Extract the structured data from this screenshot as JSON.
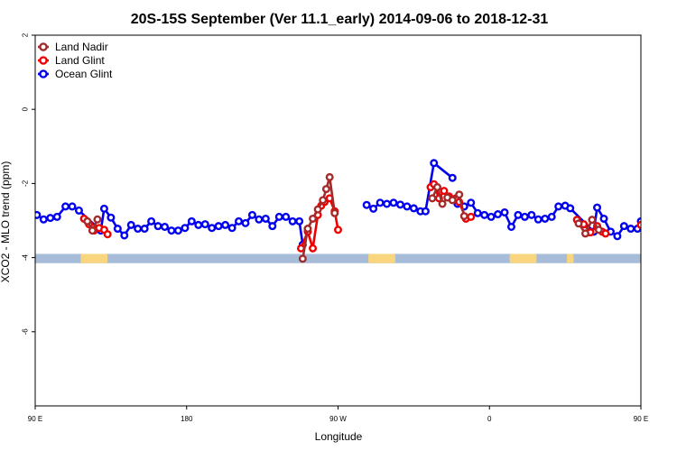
{
  "chart_data": {
    "type": "line",
    "title": "20S-15S September (Ver 11.1_early)   2014-09-06 to 2018-12-31",
    "xlabel": "Longitude",
    "ylabel": "XCO2 - MLO trend (ppm)",
    "xlim": [
      90,
      450
    ],
    "ylim": [
      -8,
      2
    ],
    "x_ticks": [
      {
        "value": 90,
        "label": "90 E"
      },
      {
        "value": 180,
        "label": "180"
      },
      {
        "value": 270,
        "label": "90 W"
      },
      {
        "value": 360,
        "label": "0"
      },
      {
        "value": 450,
        "label": "90 E"
      },
      {
        "value": 540,
        "label": "180"
      }
    ],
    "y_ticks": [
      {
        "value": 2,
        "label": "2"
      },
      {
        "value": 0,
        "label": "0"
      },
      {
        "value": -2,
        "label": "-2"
      },
      {
        "value": -4,
        "label": "-4"
      },
      {
        "value": -6,
        "label": "-6"
      }
    ],
    "land_band": {
      "y_top": -3.9,
      "y_bottom": -4.15,
      "ocean_color": "#a7bcd9",
      "land_color": "#f8d57e",
      "land_segments": [
        [
          117,
          133
        ],
        [
          288,
          304
        ],
        [
          372,
          388
        ],
        [
          406,
          410
        ],
        [
          480,
          498
        ]
      ]
    },
    "legend": {
      "position": "top-left",
      "entries": [
        {
          "name": "Land Nadir",
          "color": "#a52a2a"
        },
        {
          "name": "Land Glint",
          "color": "#ee0000"
        },
        {
          "name": "Ocean Glint",
          "color": "#0000ee"
        }
      ]
    },
    "series": [
      {
        "name": "Ocean Glint",
        "color": "#0000ee",
        "segments": [
          [
            [
              91,
              -2.85
            ],
            [
              95,
              -2.97
            ],
            [
              99,
              -2.93
            ],
            [
              103,
              -2.9
            ],
            [
              108,
              -2.62
            ],
            [
              112,
              -2.62
            ],
            [
              116,
              -2.73
            ],
            [
              129,
              -3.27
            ],
            [
              131,
              -2.68
            ],
            [
              135,
              -2.92
            ],
            [
              139,
              -3.22
            ],
            [
              143,
              -3.4
            ],
            [
              147,
              -3.12
            ],
            [
              151,
              -3.22
            ],
            [
              155,
              -3.22
            ],
            [
              159,
              -3.02
            ],
            [
              163,
              -3.15
            ],
            [
              167,
              -3.17
            ],
            [
              171,
              -3.27
            ],
            [
              175,
              -3.27
            ],
            [
              179,
              -3.2
            ],
            [
              183,
              -3.02
            ],
            [
              187,
              -3.12
            ],
            [
              191,
              -3.1
            ],
            [
              195,
              -3.2
            ],
            [
              199,
              -3.15
            ],
            [
              203,
              -3.12
            ],
            [
              207,
              -3.2
            ],
            [
              211,
              -3.02
            ],
            [
              215,
              -3.07
            ],
            [
              219,
              -2.85
            ],
            [
              223,
              -2.97
            ],
            [
              227,
              -2.95
            ],
            [
              231,
              -3.15
            ],
            [
              235,
              -2.9
            ],
            [
              239,
              -2.9
            ],
            [
              243,
              -3.02
            ],
            [
              247,
              -3.02
            ],
            [
              249,
              -3.65
            ]
          ],
          [
            [
              287,
              -2.58
            ],
            [
              291,
              -2.68
            ],
            [
              295,
              -2.52
            ],
            [
              299,
              -2.55
            ],
            [
              303,
              -2.52
            ],
            [
              307,
              -2.57
            ],
            [
              311,
              -2.62
            ],
            [
              315,
              -2.67
            ],
            [
              319,
              -2.75
            ],
            [
              322,
              -2.75
            ],
            [
              327,
              -1.45
            ],
            [
              338,
              -1.85
            ]
          ],
          [
            [
              341,
              -2.55
            ],
            [
              345,
              -2.62
            ],
            [
              349,
              -2.52
            ],
            [
              353,
              -2.8
            ],
            [
              357,
              -2.85
            ],
            [
              361,
              -2.9
            ],
            [
              365,
              -2.83
            ],
            [
              369,
              -2.78
            ],
            [
              373,
              -3.17
            ],
            [
              377,
              -2.85
            ],
            [
              381,
              -2.9
            ],
            [
              385,
              -2.85
            ],
            [
              389,
              -2.97
            ],
            [
              393,
              -2.95
            ],
            [
              397,
              -2.9
            ],
            [
              401,
              -2.62
            ],
            [
              405,
              -2.6
            ],
            [
              408,
              -2.67
            ],
            [
              422,
              -3.3
            ],
            [
              424,
              -2.65
            ],
            [
              428,
              -2.95
            ],
            [
              432,
              -3.3
            ],
            [
              436,
              -3.42
            ],
            [
              440,
              -3.15
            ],
            [
              444,
              -3.22
            ],
            [
              448,
              -3.22
            ],
            [
              450,
              -3.02
            ]
          ]
        ]
      },
      {
        "name": "Land Glint",
        "color": "#ee0000",
        "segments": [
          [
            [
              119,
              -2.95
            ],
            [
              122,
              -3.1
            ],
            [
              125,
              -3.27
            ],
            [
              128,
              -3.2
            ],
            [
              131,
              -3.25
            ],
            [
              133,
              -3.37
            ]
          ],
          [
            [
              248,
              -3.75
            ],
            [
              252,
              -3.3
            ],
            [
              255,
              -3.75
            ],
            [
              258,
              -2.85
            ],
            [
              260,
              -2.6
            ],
            [
              262,
              -2.5
            ],
            [
              265,
              -2.4
            ],
            [
              268,
              -2.75
            ],
            [
              270,
              -3.25
            ]
          ],
          [
            [
              325,
              -2.1
            ],
            [
              327,
              -2.02
            ],
            [
              330,
              -2.4
            ],
            [
              333,
              -2.2
            ],
            [
              336,
              -2.35
            ],
            [
              340,
              -2.4
            ],
            [
              342,
              -2.5
            ],
            [
              346,
              -2.95
            ],
            [
              349,
              -2.9
            ]
          ],
          [
            [
              412,
              -2.98
            ],
            [
              416,
              -3.1
            ],
            [
              420,
              -3.32
            ],
            [
              424,
              -3.15
            ],
            [
              427,
              -3.3
            ],
            [
              429,
              -3.35
            ]
          ],
          [
            [
              450,
              -3.12
            ]
          ]
        ]
      },
      {
        "name": "Land Nadir",
        "color": "#a52a2a",
        "segments": [
          [
            [
              121,
              -3.02
            ],
            [
              124,
              -3.27
            ],
            [
              127,
              -2.97
            ]
          ],
          [
            [
              249,
              -4.03
            ],
            [
              252,
              -3.22
            ],
            [
              255,
              -2.95
            ],
            [
              258,
              -2.7
            ],
            [
              261,
              -2.45
            ],
            [
              263,
              -2.15
            ],
            [
              265,
              -1.83
            ],
            [
              268,
              -2.8
            ]
          ],
          [
            [
              326,
              -2.4
            ],
            [
              329,
              -2.1
            ],
            [
              332,
              -2.55
            ],
            [
              335,
              -2.38
            ],
            [
              338,
              -2.45
            ],
            [
              342,
              -2.3
            ],
            [
              345,
              -2.88
            ]
          ],
          [
            [
              413,
              -3.08
            ],
            [
              417,
              -3.35
            ],
            [
              421,
              -2.98
            ],
            [
              425,
              -3.25
            ]
          ]
        ]
      }
    ]
  }
}
